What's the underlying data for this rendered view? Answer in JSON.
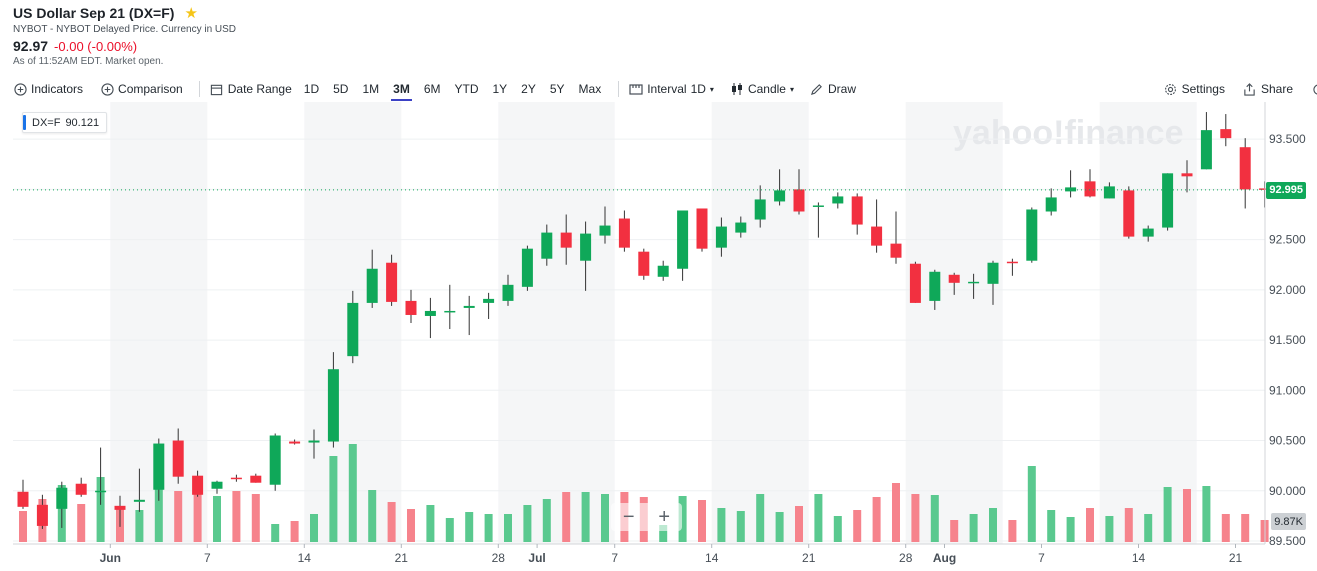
{
  "header": {
    "title": "US Dollar Sep 21 (DX=F)",
    "subtitle": "NYBOT - NYBOT Delayed Price. Currency in USD",
    "price": "92.97",
    "change": "-0.00 (-0.00%)",
    "asof": "As of 11:52AM EDT. Market open."
  },
  "toolbar": {
    "indicators": "Indicators",
    "comparison": "Comparison",
    "date_range": "Date Range",
    "ranges": [
      "1D",
      "5D",
      "1M",
      "3M",
      "6M",
      "YTD",
      "1Y",
      "2Y",
      "5Y",
      "Max"
    ],
    "active_range": "3M",
    "interval_label": "Interval",
    "interval_value": "1D",
    "chart_type": "Candle",
    "draw": "Draw",
    "settings": "Settings",
    "share": "Share"
  },
  "legend": {
    "symbol": "DX=F",
    "value": "90.121"
  },
  "watermark": "yahoo!finance",
  "colors": {
    "up": "#0fa859",
    "down": "#f23040",
    "up_volume": "#5ac98f",
    "down_volume": "#f6838c",
    "accent": "#3b41c5"
  },
  "chart_data": {
    "type": "candlestick",
    "y_ticks": [
      "93.500",
      "93.000",
      "92.500",
      "92.000",
      "91.500",
      "91.000",
      "90.500",
      "90.000",
      "89.500"
    ],
    "ylim": [
      89.47,
      93.87
    ],
    "x_labels": [
      {
        "label": "Jun",
        "index": 5
      },
      {
        "label": "7",
        "index": 10
      },
      {
        "label": "14",
        "index": 15
      },
      {
        "label": "21",
        "index": 20
      },
      {
        "label": "28",
        "index": 25
      },
      {
        "label": "Jul",
        "index": 27
      },
      {
        "label": "7",
        "index": 31
      },
      {
        "label": "14",
        "index": 36
      },
      {
        "label": "21",
        "index": 41
      },
      {
        "label": "28",
        "index": 46
      },
      {
        "label": "Aug",
        "index": 48
      },
      {
        "label": "7",
        "index": 53
      },
      {
        "label": "14",
        "index": 58
      },
      {
        "label": "21",
        "index": 63
      }
    ],
    "last_price": "92.995",
    "last_volume": "9.87K",
    "candles": [
      [
        89.99,
        90.11,
        89.82,
        89.84,
        0.31
      ],
      [
        89.86,
        89.96,
        89.62,
        89.65,
        0.43
      ],
      [
        89.82,
        90.09,
        89.63,
        90.03,
        0.57
      ],
      [
        90.07,
        90.13,
        89.94,
        89.96,
        0.38
      ],
      [
        89.99,
        90.43,
        89.86,
        90.0,
        0.65
      ],
      [
        89.85,
        89.95,
        89.64,
        89.81,
        0.34
      ],
      [
        89.89,
        90.22,
        89.79,
        89.91,
        0.32
      ],
      [
        90.01,
        90.52,
        89.9,
        90.47,
        0.75
      ],
      [
        90.5,
        90.62,
        90.07,
        90.14,
        0.51
      ],
      [
        90.15,
        90.2,
        89.94,
        89.96,
        0.64
      ],
      [
        90.02,
        90.1,
        89.97,
        90.09,
        0.46
      ],
      [
        90.13,
        90.16,
        90.09,
        90.12,
        0.51
      ],
      [
        90.15,
        90.17,
        90.08,
        90.08,
        0.48
      ],
      [
        90.06,
        90.57,
        90.0,
        90.55,
        0.18
      ],
      [
        90.49,
        90.51,
        90.46,
        90.47,
        0.21
      ],
      [
        90.48,
        90.61,
        90.32,
        90.5,
        0.28
      ],
      [
        90.49,
        91.38,
        90.43,
        91.21,
        0.86
      ],
      [
        91.34,
        91.99,
        91.27,
        91.87,
        0.98
      ],
      [
        91.87,
        92.4,
        91.82,
        92.21,
        0.52
      ],
      [
        92.27,
        92.35,
        91.84,
        91.88,
        0.4
      ],
      [
        91.89,
        92.0,
        91.67,
        91.75,
        0.33
      ],
      [
        91.74,
        91.92,
        91.52,
        91.79,
        0.37
      ],
      [
        91.79,
        92.05,
        91.61,
        91.79,
        0.24
      ],
      [
        91.82,
        91.94,
        91.55,
        91.84,
        0.3
      ],
      [
        91.87,
        91.97,
        91.71,
        91.91,
        0.28
      ],
      [
        91.89,
        92.15,
        91.84,
        92.05,
        0.28
      ],
      [
        92.03,
        92.44,
        91.99,
        92.41,
        0.37
      ],
      [
        92.31,
        92.65,
        92.24,
        92.57,
        0.43
      ],
      [
        92.57,
        92.75,
        92.25,
        92.42,
        0.5
      ],
      [
        92.29,
        92.68,
        91.99,
        92.56,
        0.5
      ],
      [
        92.54,
        92.83,
        92.46,
        92.64,
        0.48
      ],
      [
        92.71,
        92.79,
        92.38,
        92.42,
        0.5
      ],
      [
        92.38,
        92.41,
        92.1,
        92.14,
        0.45
      ],
      [
        92.13,
        92.29,
        92.09,
        92.24,
        0.17
      ],
      [
        92.21,
        92.77,
        92.09,
        92.79,
        0.46
      ],
      [
        92.81,
        92.81,
        92.38,
        92.41,
        0.42
      ],
      [
        92.42,
        92.72,
        92.33,
        92.63,
        0.34
      ],
      [
        92.57,
        92.73,
        92.52,
        92.67,
        0.31
      ],
      [
        92.7,
        93.04,
        92.62,
        92.9,
        0.48
      ],
      [
        92.88,
        93.2,
        92.84,
        92.99,
        0.3
      ],
      [
        93.0,
        93.2,
        92.75,
        92.78,
        0.36
      ],
      [
        92.84,
        92.87,
        92.52,
        92.84,
        0.48
      ],
      [
        92.86,
        92.97,
        92.81,
        92.93,
        0.26
      ],
      [
        92.93,
        92.96,
        92.55,
        92.65,
        0.32
      ],
      [
        92.63,
        92.9,
        92.37,
        92.44,
        0.45
      ],
      [
        92.46,
        92.78,
        92.26,
        92.32,
        0.59
      ],
      [
        92.26,
        92.28,
        91.87,
        91.87,
        0.48
      ],
      [
        91.89,
        92.2,
        91.8,
        92.18,
        0.47
      ],
      [
        92.15,
        92.17,
        91.95,
        92.07,
        0.22
      ],
      [
        92.07,
        92.16,
        91.91,
        92.08,
        0.28
      ],
      [
        92.06,
        92.29,
        91.85,
        92.27,
        0.34
      ],
      [
        92.28,
        92.31,
        92.14,
        92.27,
        0.22
      ],
      [
        92.29,
        92.82,
        92.27,
        92.8,
        0.76
      ],
      [
        92.78,
        93.01,
        92.74,
        92.92,
        0.32
      ],
      [
        92.98,
        93.19,
        92.92,
        93.02,
        0.25
      ],
      [
        93.08,
        93.2,
        92.92,
        92.93,
        0.34
      ],
      [
        92.91,
        93.07,
        92.91,
        93.03,
        0.26
      ],
      [
        92.99,
        93.03,
        92.51,
        92.53,
        0.34
      ],
      [
        92.53,
        92.64,
        92.48,
        92.61,
        0.28
      ],
      [
        92.62,
        93.16,
        92.59,
        93.16,
        0.55
      ],
      [
        93.16,
        93.29,
        92.97,
        93.13,
        0.53
      ],
      [
        93.2,
        93.77,
        93.2,
        93.59,
        0.56
      ],
      [
        93.6,
        93.75,
        93.43,
        93.51,
        0.28
      ],
      [
        93.42,
        93.51,
        92.81,
        93.0,
        0.28
      ],
      [
        93.01,
        93.08,
        92.82,
        92.995,
        0.22
      ]
    ]
  }
}
